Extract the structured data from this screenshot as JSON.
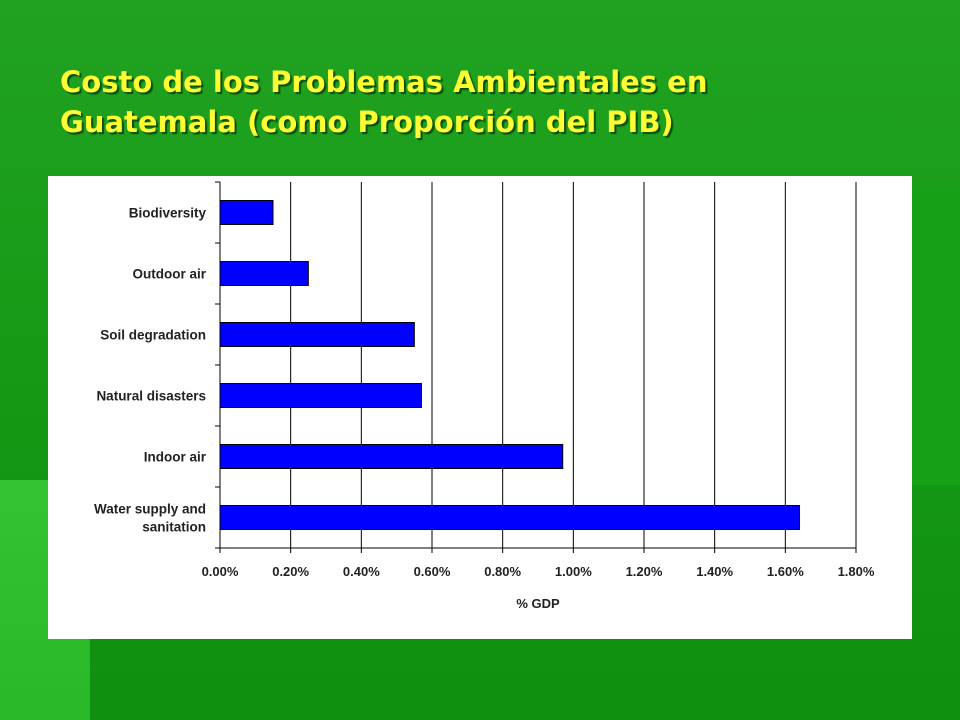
{
  "slide": {
    "title_line1": "Costo de los Problemas Ambientales en",
    "title_line2": "Guatemala (como Proporción del PIB)"
  },
  "colors": {
    "background": "#159915",
    "title": "#ffff33",
    "bar_fill": "#0000ff",
    "bar_stroke": "#000000",
    "panel": "#ffffff"
  },
  "chart_data": {
    "type": "bar",
    "orientation": "horizontal",
    "categories": [
      [
        "Biodiversity"
      ],
      [
        "Outdoor air"
      ],
      [
        "Soil degradation"
      ],
      [
        "Natural disasters"
      ],
      [
        "Indoor air"
      ],
      [
        "Water supply and",
        "sanitation"
      ]
    ],
    "values": [
      0.15,
      0.25,
      0.55,
      0.57,
      0.97,
      1.64
    ],
    "xlabel": "% GDP",
    "xlim": [
      0,
      1.8
    ],
    "xticks": [
      0,
      0.2,
      0.4,
      0.6,
      0.8,
      1.0,
      1.2,
      1.4,
      1.6,
      1.8
    ],
    "xtick_labels": [
      "0.00%",
      "0.20%",
      "0.40%",
      "0.60%",
      "0.80%",
      "1.00%",
      "1.20%",
      "1.40%",
      "1.60%",
      "1.80%"
    ],
    "grid": "vertical",
    "legend": "none"
  }
}
